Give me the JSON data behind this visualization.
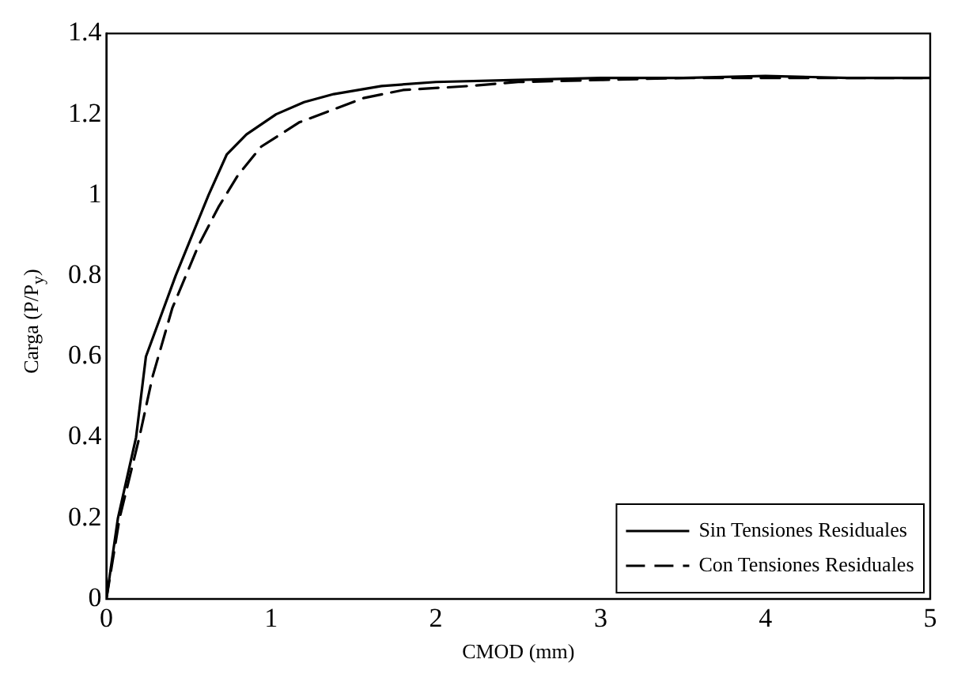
{
  "chart_data": {
    "type": "line",
    "xlabel": "CMOD (mm)",
    "ylabel": "Carga (P/P$_{y}$)",
    "xlim": [
      0,
      5
    ],
    "xticks": [
      0,
      1,
      2,
      3,
      4,
      5
    ],
    "ylim": [
      0,
      1.4
    ],
    "yticks": [
      0,
      0.2,
      0.4,
      0.6,
      0.8,
      1,
      1.2,
      1.4
    ],
    "grid": false,
    "legend": "bottom right",
    "marker": "none",
    "series": [
      {
        "name": "Sin Tensiones Residuales",
        "color": "#000000",
        "line_style": "solid",
        "x": [
          0,
          0.07,
          0.18,
          0.24,
          0.33,
          0.42,
          0.52,
          0.62,
          0.73,
          0.85,
          1.03,
          1.2,
          1.38,
          1.67,
          2,
          2.5,
          3,
          3.5,
          4,
          4.5,
          5
        ],
        "values": [
          0,
          0.2,
          0.4,
          0.6,
          0.7,
          0.8,
          0.9,
          1.0,
          1.1,
          1.15,
          1.2,
          1.23,
          1.25,
          1.27,
          1.28,
          1.285,
          1.29,
          1.29,
          1.295,
          1.29,
          1.29
        ]
      },
      {
        "name": "Con Tensiones Residuales",
        "color": "#000000",
        "line_style": "dashed",
        "x": [
          0,
          0.08,
          0.2,
          0.28,
          0.4,
          0.56,
          0.68,
          0.8,
          0.94,
          1.17,
          1.56,
          1.8,
          2.2,
          2.5,
          3,
          3.5,
          4,
          4.5,
          5
        ],
        "values": [
          0,
          0.2,
          0.4,
          0.55,
          0.72,
          0.876,
          0.97,
          1.05,
          1.12,
          1.18,
          1.24,
          1.26,
          1.27,
          1.28,
          1.285,
          1.29,
          1.29,
          1.29,
          1.29
        ]
      }
    ]
  }
}
